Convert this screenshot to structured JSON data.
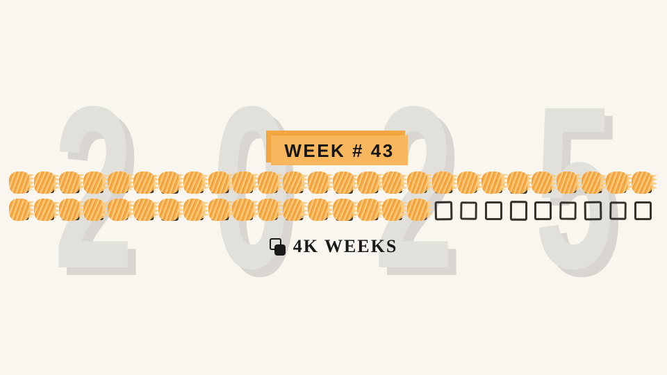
{
  "background_color": "#f9f6ef",
  "watermark": {
    "text": "2025",
    "digits": [
      "2",
      "0",
      "2",
      "5"
    ],
    "color": "#e2e0db",
    "shadow_color": "#d9d6d1"
  },
  "badge": {
    "label": "WEEK # 43",
    "front_color": "#f8b75d",
    "back_color": "#f3a640",
    "text_color": "#161616"
  },
  "week_grid": {
    "total_weeks": 52,
    "completed_weeks": 43,
    "remaining_weeks": 9,
    "rows": 2,
    "columns": 26,
    "filled_color": "#f5ac4b",
    "filled_hatch_light": "#fbcd85",
    "filled_hatch_deep": "#f1a038",
    "outline_color": "#35322d"
  },
  "brand": {
    "label": "4K WEEKS",
    "icon": "copy-squares-icon",
    "color": "#191919"
  }
}
